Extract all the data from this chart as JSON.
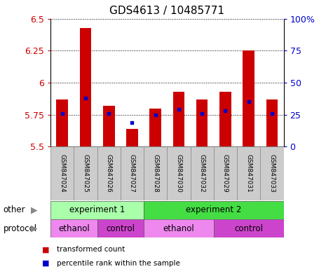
{
  "title": "GDS4613 / 10485771",
  "samples": [
    "GSM847024",
    "GSM847025",
    "GSM847026",
    "GSM847027",
    "GSM847028",
    "GSM847030",
    "GSM847032",
    "GSM847029",
    "GSM847031",
    "GSM847033"
  ],
  "bar_values": [
    5.87,
    6.43,
    5.82,
    5.64,
    5.8,
    5.93,
    5.87,
    5.93,
    6.25,
    5.87
  ],
  "dot_values": [
    5.76,
    5.88,
    5.76,
    5.69,
    5.75,
    5.79,
    5.76,
    5.78,
    5.85,
    5.76
  ],
  "ymin": 5.5,
  "ymax": 6.5,
  "yticks": [
    5.5,
    5.75,
    6.0,
    6.25,
    6.5
  ],
  "ytick_labels": [
    "5.5",
    "5.75",
    "6",
    "6.25",
    "6.5"
  ],
  "right_yticks": [
    0,
    25,
    50,
    75,
    100
  ],
  "right_ytick_labels": [
    "0",
    "25",
    "50",
    "75",
    "100%"
  ],
  "bar_color": "#cc0000",
  "dot_color": "#0000cc",
  "bar_bottom": 5.5,
  "experiment_groups": [
    {
      "label": "experiment 1",
      "start": 0,
      "end": 4,
      "color": "#aaffaa"
    },
    {
      "label": "experiment 2",
      "start": 4,
      "end": 10,
      "color": "#44dd44"
    }
  ],
  "protocol_groups": [
    {
      "label": "ethanol",
      "start": 0,
      "end": 2,
      "color": "#ee88ee"
    },
    {
      "label": "control",
      "start": 2,
      "end": 4,
      "color": "#cc44cc"
    },
    {
      "label": "ethanol",
      "start": 4,
      "end": 7,
      "color": "#ee88ee"
    },
    {
      "label": "control",
      "start": 7,
      "end": 10,
      "color": "#cc44cc"
    }
  ],
  "legend_items": [
    {
      "label": "transformed count",
      "color": "#cc0000"
    },
    {
      "label": "percentile rank within the sample",
      "color": "#0000cc"
    }
  ],
  "label_area_color": "#cccccc",
  "grid_linestyle": ":"
}
